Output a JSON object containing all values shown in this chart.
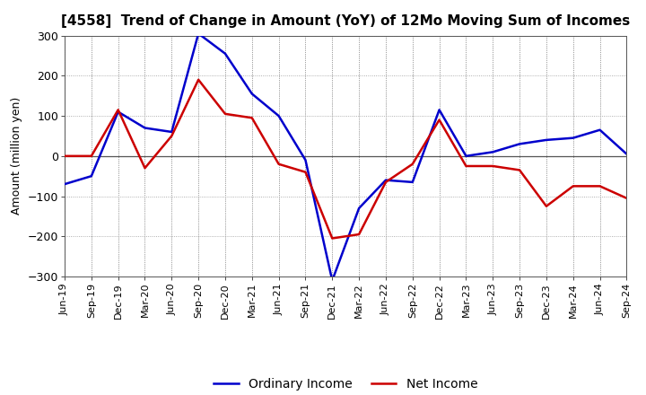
{
  "title": "[4558]  Trend of Change in Amount (YoY) of 12Mo Moving Sum of Incomes",
  "ylabel": "Amount (million yen)",
  "ylim": [
    -300,
    300
  ],
  "yticks": [
    -300,
    -200,
    -100,
    0,
    100,
    200,
    300
  ],
  "background_color": "#ffffff",
  "plot_bg_color": "#f0f0f0",
  "grid_color": "#aaaaaa",
  "x_labels": [
    "Jun-19",
    "Sep-19",
    "Dec-19",
    "Mar-20",
    "Jun-20",
    "Sep-20",
    "Dec-20",
    "Mar-21",
    "Jun-21",
    "Sep-21",
    "Dec-21",
    "Mar-22",
    "Jun-22",
    "Sep-22",
    "Dec-22",
    "Mar-23",
    "Jun-23",
    "Sep-23",
    "Dec-23",
    "Mar-24",
    "Jun-24",
    "Sep-24"
  ],
  "ordinary_income": [
    -70,
    -50,
    110,
    70,
    60,
    305,
    255,
    155,
    100,
    -10,
    -310,
    -130,
    -60,
    -65,
    115,
    0,
    10,
    30,
    40,
    45,
    65,
    5
  ],
  "net_income": [
    0,
    0,
    115,
    -30,
    50,
    190,
    105,
    95,
    -20,
    -40,
    -205,
    -195,
    -65,
    -20,
    90,
    -25,
    -25,
    -35,
    -125,
    -75,
    -75,
    -105
  ],
  "ordinary_income_color": "#0000cc",
  "net_income_color": "#cc0000",
  "line_width": 1.8
}
